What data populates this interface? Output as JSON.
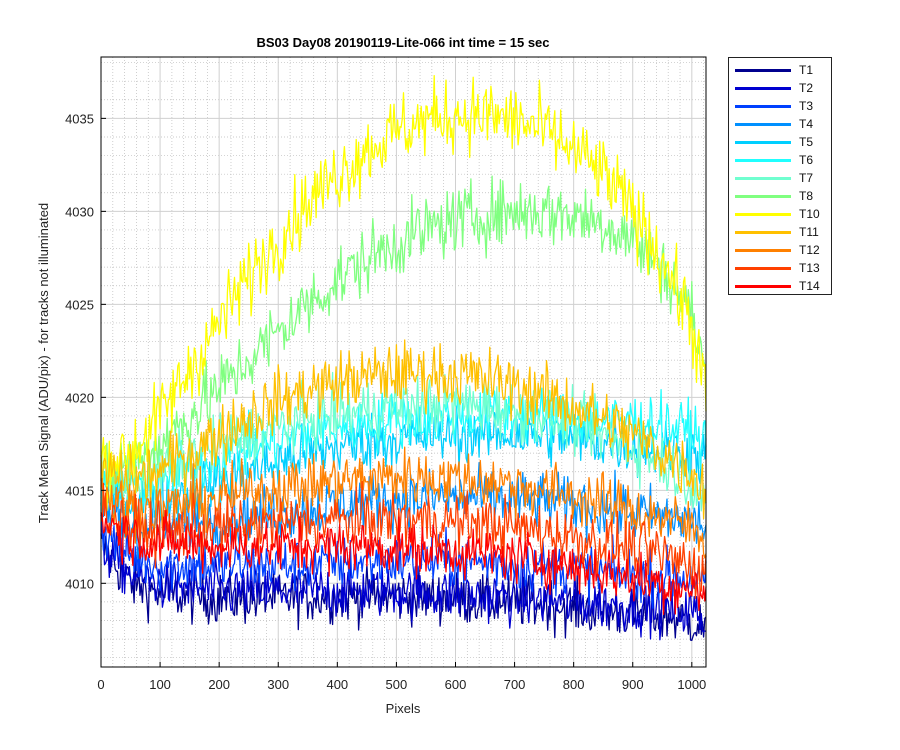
{
  "chart_data": {
    "type": "line",
    "title": "BS03 Day08 20190119-Lite-066 int time = 15 sec",
    "xlabel": "Pixels",
    "ylabel": "Track Mean Signal (ADU/pix) - for tracks not illuminated",
    "xlim": [
      0,
      1024
    ],
    "ylim": [
      4005.5,
      4038.3
    ],
    "x_ticks": [
      0,
      100,
      200,
      300,
      400,
      500,
      600,
      700,
      800,
      900,
      1000
    ],
    "y_ticks": [
      4010,
      4015,
      4020,
      4025,
      4030,
      4035
    ],
    "grid": "major and minor (dotted)",
    "legend_position": "outside-right",
    "x": [
      0,
      50,
      100,
      150,
      200,
      250,
      300,
      350,
      400,
      450,
      500,
      550,
      600,
      650,
      700,
      750,
      800,
      850,
      900,
      950,
      1000,
      1024
    ],
    "series": [
      {
        "name": "T1",
        "color": "#00008f",
        "noise": 1.0,
        "values": [
          4012,
          4010,
          4009.5,
          4009.3,
          4009.2,
          4009.2,
          4009.2,
          4009.3,
          4009.3,
          4009.3,
          4009.3,
          4009.2,
          4009.2,
          4009.1,
          4009.0,
          4008.9,
          4008.7,
          4008.5,
          4008.4,
          4008.2,
          4008.0,
          4007.5
        ]
      },
      {
        "name": "T2",
        "color": "#0000d0",
        "noise": 1.0,
        "values": [
          4012,
          4010.5,
          4010,
          4009.8,
          4009.6,
          4009.6,
          4009.6,
          4009.6,
          4009.6,
          4009.6,
          4009.6,
          4009.5,
          4009.4,
          4009.3,
          4009.2,
          4009.1,
          4009.0,
          4008.9,
          4008.8,
          4008.7,
          4008.5,
          4008.0
        ]
      },
      {
        "name": "T3",
        "color": "#0040ff",
        "noise": 1.0,
        "values": [
          4013,
          4011.5,
          4011,
          4011,
          4011,
          4011,
          4011,
          4011,
          4011.1,
          4011.2,
          4011.2,
          4011.2,
          4011.2,
          4011.1,
          4011.0,
          4010.9,
          4010.8,
          4010.6,
          4010.5,
          4010.4,
          4010.2,
          4010.0
        ]
      },
      {
        "name": "T4",
        "color": "#0090ff",
        "noise": 1.1,
        "values": [
          4014,
          4013,
          4013,
          4013.2,
          4013.4,
          4013.6,
          4013.8,
          4014,
          4014.2,
          4014.4,
          4014.5,
          4014.6,
          4014.6,
          4014.6,
          4014.5,
          4014.4,
          4014.2,
          4014.0,
          4013.8,
          4013.6,
          4013.4,
          4013.0
        ]
      },
      {
        "name": "T5",
        "color": "#00cfff",
        "noise": 1.1,
        "values": [
          4015,
          4014.5,
          4014.5,
          4015,
          4015.5,
          4016,
          4016.5,
          4017,
          4017.3,
          4017.6,
          4017.8,
          4017.9,
          4018.0,
          4018.0,
          4018.0,
          4017.9,
          4017.8,
          4017.6,
          4017.4,
          4017.2,
          4017.0,
          4016.5
        ]
      },
      {
        "name": "T6",
        "color": "#20ffff",
        "noise": 1.1,
        "values": [
          4015.5,
          4015.2,
          4015.5,
          4016.2,
          4016.8,
          4017.3,
          4017.7,
          4018.1,
          4018.4,
          4018.6,
          4018.8,
          4018.9,
          4019.0,
          4019.0,
          4019.0,
          4019.0,
          4018.9,
          4018.8,
          4018.7,
          4018.5,
          4018.2,
          4017.5
        ]
      },
      {
        "name": "T7",
        "color": "#70ffd0",
        "noise": 1.1,
        "values": [
          4015.5,
          4015.5,
          4016,
          4016.8,
          4017.5,
          4018,
          4018.5,
          4018.8,
          4019.1,
          4019.3,
          4019.5,
          4019.6,
          4019.6,
          4019.5,
          4019.3,
          4019.0,
          4018.6,
          4018.0,
          4017.3,
          4016.5,
          4015.5,
          4014.5
        ]
      },
      {
        "name": "T8",
        "color": "#80ff80",
        "noise": 1.3,
        "values": [
          4016,
          4016.5,
          4017.5,
          4019,
          4020.5,
          4022,
          4023.5,
          4025,
          4026.3,
          4027.4,
          4028.3,
          4029.0,
          4029.5,
          4029.8,
          4030.0,
          4030.0,
          4029.8,
          4029.4,
          4028.5,
          4027.0,
          4024.5,
          4021.0
        ]
      },
      {
        "name": "T10",
        "color": "#ffff00",
        "noise": 1.4,
        "values": [
          4016.5,
          4017,
          4019,
          4021.5,
          4024,
          4026.5,
          4028.5,
          4030.5,
          4032,
          4033.3,
          4034.3,
          4034.9,
          4035.2,
          4035.2,
          4034.9,
          4034.3,
          4033.3,
          4032.0,
          4030.0,
          4027.5,
          4024.0,
          4020.0
        ]
      },
      {
        "name": "T11",
        "color": "#ffc000",
        "noise": 1.2,
        "values": [
          4016,
          4015.5,
          4016,
          4017,
          4018,
          4019,
          4019.8,
          4020.4,
          4020.8,
          4021.1,
          4021.3,
          4021.3,
          4021.2,
          4021.0,
          4020.6,
          4020.1,
          4019.5,
          4018.8,
          4018.0,
          4017.0,
          4016.0,
          4015.0
        ]
      },
      {
        "name": "T12",
        "color": "#ff8000",
        "noise": 1.1,
        "values": [
          4015,
          4014,
          4014,
          4014.3,
          4014.6,
          4014.9,
          4015.1,
          4015.3,
          4015.5,
          4015.6,
          4015.7,
          4015.7,
          4015.6,
          4015.5,
          4015.3,
          4015.0,
          4014.7,
          4014.3,
          4013.9,
          4013.5,
          4013.0,
          4012.5
        ]
      },
      {
        "name": "T13",
        "color": "#ff4000",
        "noise": 1.1,
        "values": [
          4014,
          4013,
          4012.8,
          4012.9,
          4013,
          4013.1,
          4013.2,
          4013.3,
          4013.4,
          4013.4,
          4013.4,
          4013.4,
          4013.3,
          4013.2,
          4013.0,
          4012.8,
          4012.5,
          4012.2,
          4011.9,
          4011.5,
          4011.0,
          4010.5
        ]
      },
      {
        "name": "T14",
        "color": "#ff0000",
        "noise": 1.0,
        "values": [
          4013.5,
          4012.5,
          4012.2,
          4012.1,
          4012.0,
          4012.0,
          4012.0,
          4012.0,
          4012.0,
          4012.0,
          4011.9,
          4011.8,
          4011.7,
          4011.6,
          4011.4,
          4011.2,
          4010.9,
          4010.6,
          4010.3,
          4010.0,
          4009.7,
          4009.5
        ]
      }
    ]
  }
}
